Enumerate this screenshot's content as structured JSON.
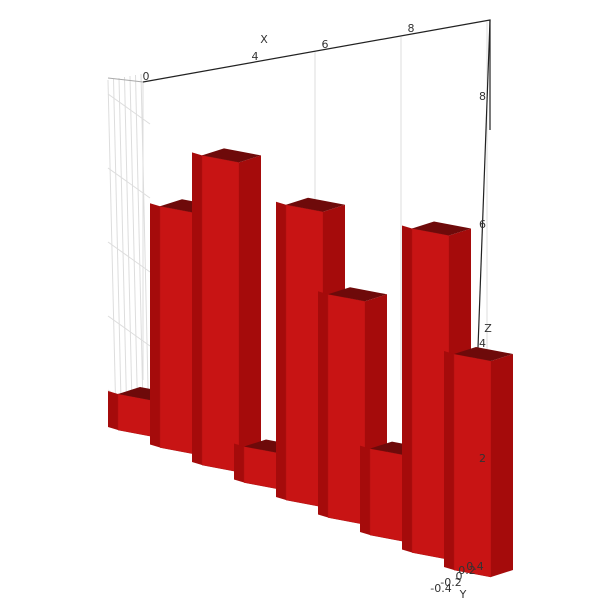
{
  "chart_data": {
    "type": "bar",
    "subtype": "3d-bar",
    "x": [
      0,
      1,
      2,
      3,
      4,
      5,
      6,
      7,
      8
    ],
    "values": [
      1,
      6.7,
      8.6,
      1,
      8.2,
      6.2,
      2.4,
      9,
      6
    ],
    "xlabel": "X",
    "ylabel": "Y",
    "zlabel": "Z",
    "x_ticks": [
      "0",
      "4",
      "6",
      "8"
    ],
    "z_ticks": [
      "2",
      "4",
      "6",
      "8"
    ],
    "y_ticks": [
      "-0.4",
      "-0.2",
      "0",
      "0.2",
      "0.4"
    ],
    "zlim": [
      0,
      9
    ],
    "grid": true,
    "bar_color": "#c81414"
  },
  "colors": {
    "bar_front": "#c81414",
    "bar_side": "#a50b0b",
    "bar_top": "#6e0a0a",
    "axis": "#222222",
    "grid": "#dddddd"
  }
}
